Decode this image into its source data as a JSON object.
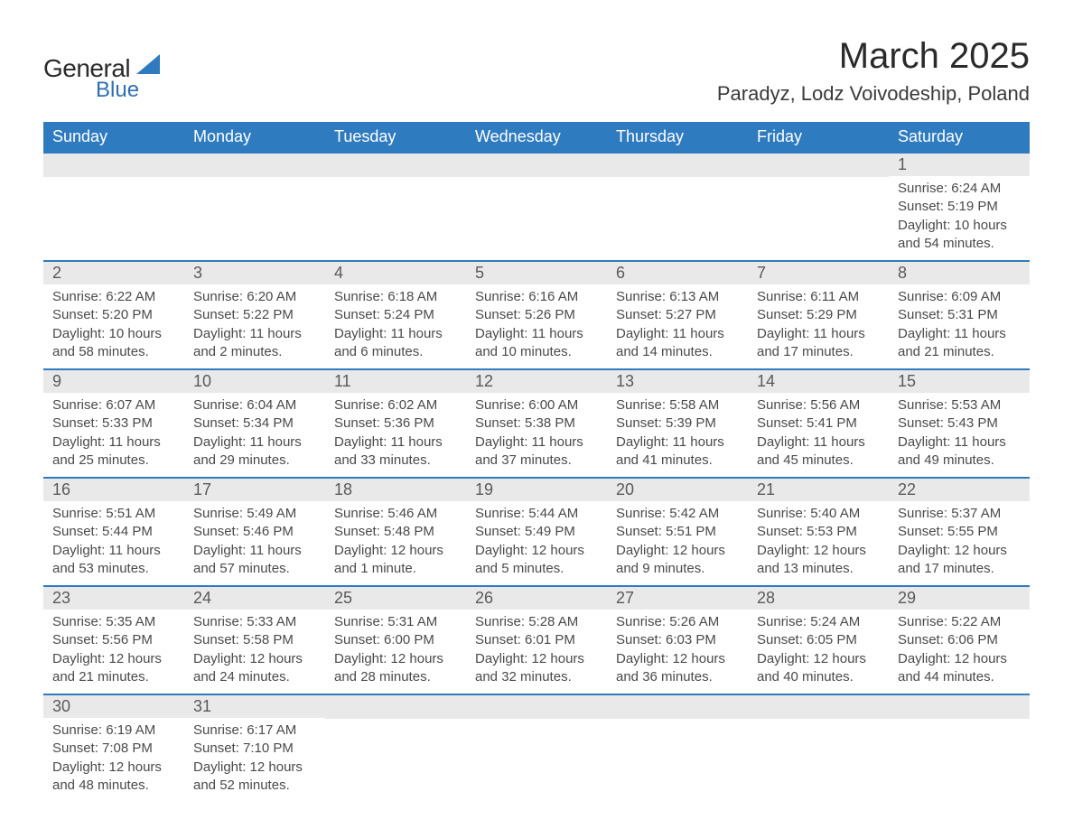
{
  "brand": {
    "name_main": "General",
    "name_sub": "Blue",
    "accent_color": "#2f7bbf",
    "text_color": "#2a2a2a"
  },
  "title": "March 2025",
  "subtitle": "Paradyz, Lodz Voivodeship, Poland",
  "style": {
    "header_bg": "#2f7bbf",
    "header_text": "#ffffff",
    "daynum_bg": "#e9e9e9",
    "daynum_text": "#5a5a5a",
    "body_text": "#4a4a4a",
    "row_divider": "#2f7bbf",
    "title_fontsize": 40,
    "subtitle_fontsize": 22,
    "header_fontsize": 18,
    "daynum_fontsize": 18,
    "body_fontsize": 15,
    "page_bg": "#ffffff"
  },
  "columns": [
    "Sunday",
    "Monday",
    "Tuesday",
    "Wednesday",
    "Thursday",
    "Friday",
    "Saturday"
  ],
  "weeks": [
    [
      {
        "blank": true
      },
      {
        "blank": true
      },
      {
        "blank": true
      },
      {
        "blank": true
      },
      {
        "blank": true
      },
      {
        "blank": true
      },
      {
        "day": "1",
        "sunrise": "Sunrise: 6:24 AM",
        "sunset": "Sunset: 5:19 PM",
        "daylight1": "Daylight: 10 hours",
        "daylight2": "and 54 minutes."
      }
    ],
    [
      {
        "day": "2",
        "sunrise": "Sunrise: 6:22 AM",
        "sunset": "Sunset: 5:20 PM",
        "daylight1": "Daylight: 10 hours",
        "daylight2": "and 58 minutes."
      },
      {
        "day": "3",
        "sunrise": "Sunrise: 6:20 AM",
        "sunset": "Sunset: 5:22 PM",
        "daylight1": "Daylight: 11 hours",
        "daylight2": "and 2 minutes."
      },
      {
        "day": "4",
        "sunrise": "Sunrise: 6:18 AM",
        "sunset": "Sunset: 5:24 PM",
        "daylight1": "Daylight: 11 hours",
        "daylight2": "and 6 minutes."
      },
      {
        "day": "5",
        "sunrise": "Sunrise: 6:16 AM",
        "sunset": "Sunset: 5:26 PM",
        "daylight1": "Daylight: 11 hours",
        "daylight2": "and 10 minutes."
      },
      {
        "day": "6",
        "sunrise": "Sunrise: 6:13 AM",
        "sunset": "Sunset: 5:27 PM",
        "daylight1": "Daylight: 11 hours",
        "daylight2": "and 14 minutes."
      },
      {
        "day": "7",
        "sunrise": "Sunrise: 6:11 AM",
        "sunset": "Sunset: 5:29 PM",
        "daylight1": "Daylight: 11 hours",
        "daylight2": "and 17 minutes."
      },
      {
        "day": "8",
        "sunrise": "Sunrise: 6:09 AM",
        "sunset": "Sunset: 5:31 PM",
        "daylight1": "Daylight: 11 hours",
        "daylight2": "and 21 minutes."
      }
    ],
    [
      {
        "day": "9",
        "sunrise": "Sunrise: 6:07 AM",
        "sunset": "Sunset: 5:33 PM",
        "daylight1": "Daylight: 11 hours",
        "daylight2": "and 25 minutes."
      },
      {
        "day": "10",
        "sunrise": "Sunrise: 6:04 AM",
        "sunset": "Sunset: 5:34 PM",
        "daylight1": "Daylight: 11 hours",
        "daylight2": "and 29 minutes."
      },
      {
        "day": "11",
        "sunrise": "Sunrise: 6:02 AM",
        "sunset": "Sunset: 5:36 PM",
        "daylight1": "Daylight: 11 hours",
        "daylight2": "and 33 minutes."
      },
      {
        "day": "12",
        "sunrise": "Sunrise: 6:00 AM",
        "sunset": "Sunset: 5:38 PM",
        "daylight1": "Daylight: 11 hours",
        "daylight2": "and 37 minutes."
      },
      {
        "day": "13",
        "sunrise": "Sunrise: 5:58 AM",
        "sunset": "Sunset: 5:39 PM",
        "daylight1": "Daylight: 11 hours",
        "daylight2": "and 41 minutes."
      },
      {
        "day": "14",
        "sunrise": "Sunrise: 5:56 AM",
        "sunset": "Sunset: 5:41 PM",
        "daylight1": "Daylight: 11 hours",
        "daylight2": "and 45 minutes."
      },
      {
        "day": "15",
        "sunrise": "Sunrise: 5:53 AM",
        "sunset": "Sunset: 5:43 PM",
        "daylight1": "Daylight: 11 hours",
        "daylight2": "and 49 minutes."
      }
    ],
    [
      {
        "day": "16",
        "sunrise": "Sunrise: 5:51 AM",
        "sunset": "Sunset: 5:44 PM",
        "daylight1": "Daylight: 11 hours",
        "daylight2": "and 53 minutes."
      },
      {
        "day": "17",
        "sunrise": "Sunrise: 5:49 AM",
        "sunset": "Sunset: 5:46 PM",
        "daylight1": "Daylight: 11 hours",
        "daylight2": "and 57 minutes."
      },
      {
        "day": "18",
        "sunrise": "Sunrise: 5:46 AM",
        "sunset": "Sunset: 5:48 PM",
        "daylight1": "Daylight: 12 hours",
        "daylight2": "and 1 minute."
      },
      {
        "day": "19",
        "sunrise": "Sunrise: 5:44 AM",
        "sunset": "Sunset: 5:49 PM",
        "daylight1": "Daylight: 12 hours",
        "daylight2": "and 5 minutes."
      },
      {
        "day": "20",
        "sunrise": "Sunrise: 5:42 AM",
        "sunset": "Sunset: 5:51 PM",
        "daylight1": "Daylight: 12 hours",
        "daylight2": "and 9 minutes."
      },
      {
        "day": "21",
        "sunrise": "Sunrise: 5:40 AM",
        "sunset": "Sunset: 5:53 PM",
        "daylight1": "Daylight: 12 hours",
        "daylight2": "and 13 minutes."
      },
      {
        "day": "22",
        "sunrise": "Sunrise: 5:37 AM",
        "sunset": "Sunset: 5:55 PM",
        "daylight1": "Daylight: 12 hours",
        "daylight2": "and 17 minutes."
      }
    ],
    [
      {
        "day": "23",
        "sunrise": "Sunrise: 5:35 AM",
        "sunset": "Sunset: 5:56 PM",
        "daylight1": "Daylight: 12 hours",
        "daylight2": "and 21 minutes."
      },
      {
        "day": "24",
        "sunrise": "Sunrise: 5:33 AM",
        "sunset": "Sunset: 5:58 PM",
        "daylight1": "Daylight: 12 hours",
        "daylight2": "and 24 minutes."
      },
      {
        "day": "25",
        "sunrise": "Sunrise: 5:31 AM",
        "sunset": "Sunset: 6:00 PM",
        "daylight1": "Daylight: 12 hours",
        "daylight2": "and 28 minutes."
      },
      {
        "day": "26",
        "sunrise": "Sunrise: 5:28 AM",
        "sunset": "Sunset: 6:01 PM",
        "daylight1": "Daylight: 12 hours",
        "daylight2": "and 32 minutes."
      },
      {
        "day": "27",
        "sunrise": "Sunrise: 5:26 AM",
        "sunset": "Sunset: 6:03 PM",
        "daylight1": "Daylight: 12 hours",
        "daylight2": "and 36 minutes."
      },
      {
        "day": "28",
        "sunrise": "Sunrise: 5:24 AM",
        "sunset": "Sunset: 6:05 PM",
        "daylight1": "Daylight: 12 hours",
        "daylight2": "and 40 minutes."
      },
      {
        "day": "29",
        "sunrise": "Sunrise: 5:22 AM",
        "sunset": "Sunset: 6:06 PM",
        "daylight1": "Daylight: 12 hours",
        "daylight2": "and 44 minutes."
      }
    ],
    [
      {
        "day": "30",
        "sunrise": "Sunrise: 6:19 AM",
        "sunset": "Sunset: 7:08 PM",
        "daylight1": "Daylight: 12 hours",
        "daylight2": "and 48 minutes."
      },
      {
        "day": "31",
        "sunrise": "Sunrise: 6:17 AM",
        "sunset": "Sunset: 7:10 PM",
        "daylight1": "Daylight: 12 hours",
        "daylight2": "and 52 minutes."
      },
      {
        "blank": true
      },
      {
        "blank": true
      },
      {
        "blank": true
      },
      {
        "blank": true
      },
      {
        "blank": true
      }
    ]
  ]
}
